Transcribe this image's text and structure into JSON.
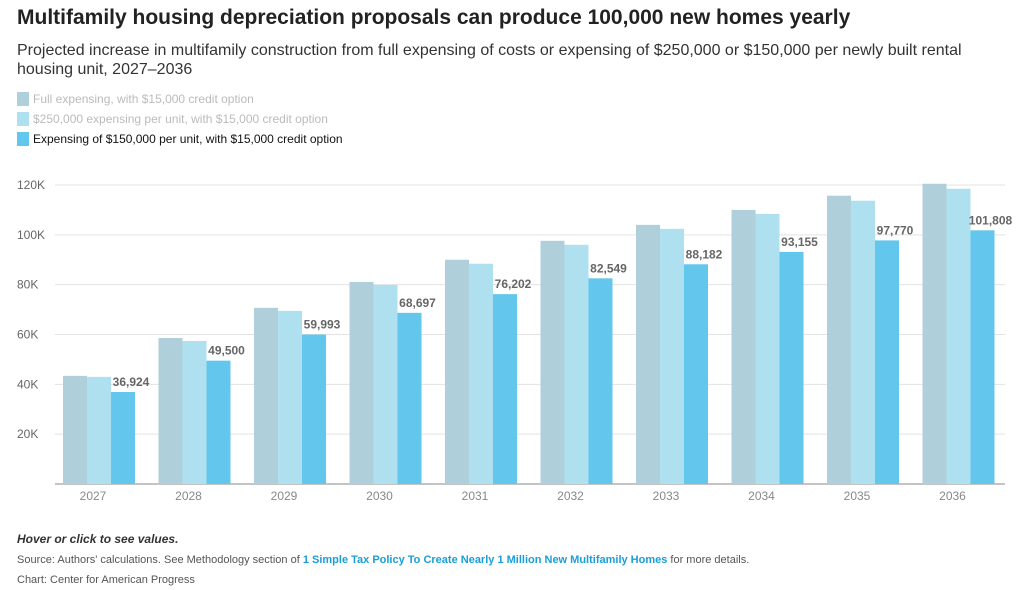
{
  "title": "Multifamily housing depreciation proposals can produce 100,000 new homes yearly",
  "subtitle": "Projected increase in multifamily construction from full expensing of costs or expensing of $250,000 or $150,000 per newly built rental housing unit, 2027–2036",
  "footer": {
    "hint": "Hover or click to see values.",
    "source_prefix": "Source: Authors' calculations. See Methodology section of ",
    "source_link": "1 Simple Tax Policy To Create Nearly 1 Million New Multifamily Homes",
    "source_suffix": " for more details.",
    "credit": "Chart: Center for American Progress"
  },
  "chart_data": {
    "type": "bar",
    "categories": [
      "2027",
      "2028",
      "2029",
      "2030",
      "2031",
      "2032",
      "2033",
      "2034",
      "2035",
      "2036"
    ],
    "ylim": [
      0,
      120000
    ],
    "yticks": [
      20000,
      40000,
      60000,
      80000,
      100000,
      120000
    ],
    "ytick_labels": [
      "20K",
      "40K",
      "60K",
      "80K",
      "100K",
      "120K"
    ],
    "legend_placement": "top-left",
    "series": [
      {
        "name": "Full expensing, with $15,000 credit option",
        "color": "#afcfdb",
        "legend_text_color": "#bbbbbb",
        "values": [
          43400,
          58600,
          70700,
          81100,
          90000,
          97600,
          104000,
          110000,
          115700,
          120500
        ],
        "labeled": false
      },
      {
        "name": "$250,000 expensing per unit, with $15,000 credit option",
        "color": "#aee0f0",
        "legend_text_color": "#bbbbbb",
        "values": [
          43000,
          57400,
          69500,
          79900,
          88400,
          96000,
          102400,
          108400,
          113700,
          118500
        ],
        "labeled": false
      },
      {
        "name": "Expensing of $150,000 per unit, with $15,000 credit option",
        "color": "#63c6ec",
        "legend_text_color": "#111111",
        "values": [
          36924,
          49500,
          59993,
          68697,
          76202,
          82549,
          88182,
          93155,
          97770,
          101808
        ],
        "labels": [
          "36,924",
          "49,500",
          "59,993",
          "68,697",
          "76,202",
          "82,549",
          "88,182",
          "93,155",
          "97,770",
          "101,808"
        ],
        "labeled": true
      }
    ]
  }
}
